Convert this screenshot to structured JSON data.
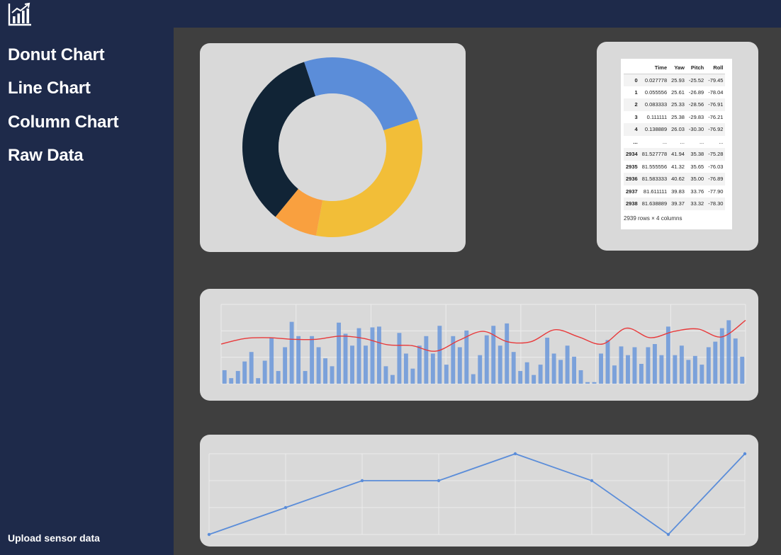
{
  "nav": {
    "items": [
      {
        "label": "Donut Chart"
      },
      {
        "label": "Line Chart"
      },
      {
        "label": "Column Chart"
      },
      {
        "label": "Raw Data"
      }
    ],
    "upload_label": "Upload sensor data",
    "logo_icon": "bar-chart-trend-icon"
  },
  "colors": {
    "sidebar": "#1e2a4a",
    "background": "#3f3f3f",
    "card": "#d9d9d9",
    "blue": "#5b8dd9",
    "yellow": "#f2be38",
    "orange": "#f9a03f",
    "navy": "#112436",
    "red": "#e8393a"
  },
  "raw_table": {
    "columns": [
      "",
      "Time",
      "Yaw",
      "Pitch",
      "Roll"
    ],
    "rows": [
      [
        "0",
        "0.027778",
        "25.93",
        "-25.52",
        "-79.45"
      ],
      [
        "1",
        "0.055556",
        "25.61",
        "-26.89",
        "-78.04"
      ],
      [
        "2",
        "0.083333",
        "25.33",
        "-28.56",
        "-76.91"
      ],
      [
        "3",
        "0.111111",
        "25.38",
        "-29.83",
        "-76.21"
      ],
      [
        "4",
        "0.138889",
        "26.03",
        "-30.30",
        "-76.92"
      ],
      [
        "...",
        "...",
        "...",
        "...",
        "..."
      ],
      [
        "2934",
        "81.527778",
        "41.94",
        "35.38",
        "-75.28"
      ],
      [
        "2935",
        "81.555556",
        "41.32",
        "35.65",
        "-76.03"
      ],
      [
        "2936",
        "81.583333",
        "40.62",
        "35.00",
        "-76.89"
      ],
      [
        "2937",
        "81.611111",
        "39.83",
        "33.76",
        "-77.90"
      ],
      [
        "2938",
        "81.638889",
        "39.37",
        "33.32",
        "-78.30"
      ]
    ],
    "caption": "2939 rows × 4 columns"
  },
  "chart_data": [
    {
      "type": "pie",
      "donut": true,
      "slices": [
        {
          "value": 25,
          "color": "#5b8dd9"
        },
        {
          "value": 33,
          "color": "#f2be38"
        },
        {
          "value": 8,
          "color": "#f9a03f"
        },
        {
          "value": 34,
          "color": "#112436"
        }
      ]
    },
    {
      "type": "bar",
      "overlay_line": true,
      "ylim": [
        0,
        100
      ],
      "bar_color": "#5b8dd9",
      "line_color": "#e8393a",
      "values": [
        17,
        7,
        16,
        28,
        40,
        7,
        29,
        58,
        16,
        46,
        78,
        60,
        16,
        60,
        46,
        32,
        22,
        77,
        63,
        48,
        70,
        48,
        71,
        72,
        22,
        11,
        64,
        38,
        19,
        48,
        60,
        38,
        73,
        24,
        60,
        46,
        67,
        12,
        36,
        61,
        73,
        48,
        76,
        40,
        16,
        27,
        11,
        24,
        58,
        38,
        30,
        48,
        34,
        17,
        2,
        2,
        38,
        55,
        23,
        47,
        36,
        46,
        25,
        46,
        50,
        36,
        72,
        36,
        48,
        30,
        35,
        24,
        46,
        53,
        70,
        80,
        57,
        34
      ],
      "line": [
        50,
        57,
        58,
        56,
        56,
        60,
        57,
        49,
        48,
        41,
        55,
        66,
        53,
        53,
        68,
        59,
        50,
        70,
        58,
        66,
        69,
        59,
        80
      ]
    },
    {
      "type": "line",
      "ylim": [
        0,
        3
      ],
      "line_color": "#5b8dd9",
      "values": [
        0,
        1,
        2,
        2,
        3,
        2,
        0,
        3
      ]
    }
  ]
}
